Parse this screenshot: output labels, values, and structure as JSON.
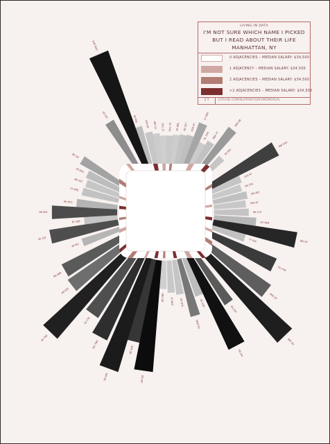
{
  "legend": {
    "kicker": "LIVING IN DATA",
    "title_lines": [
      "I'M NOT SURE WHICH NAME I PICKED",
      "BUT I READ ABOUT THEIR LIFE",
      "MANHATTAN, NY"
    ],
    "entries": [
      {
        "label": "0 ADJACENCIES – MEDIAN SALARY: $34,500",
        "color": "#ffffff"
      },
      {
        "label": "1 ADJACENCY – MEDIAN SALARY: $34,500",
        "color": "#cfa8a3"
      },
      {
        "label": "2 ADJACENCIES – MEDIAN SALARY: $34,500",
        "color": "#b27d74"
      },
      {
        "label": ">2 ADJACENCIES – MEDIAN SALARY: $34,500",
        "color": "#7c2e2f"
      }
    ],
    "footer_left": "2 T",
    "footer_right": "GITHUB.COM/BLPRINT/UIEVMEMORIAL"
  },
  "colors": {
    "background": "#f7f1ef",
    "frame_border": "#b86a6a",
    "dark": "#2b2b2b"
  },
  "chart_data": {
    "type": "radial-bar",
    "title": "I'M NOT SURE WHICH NAME I PICKED BUT I READ ABOUT THEIR LIFE",
    "subtitle": "MANHATTAN, NY",
    "grid": false,
    "legend_position": "top-right",
    "value_range": [
      0,
      1
    ],
    "bars": [
      {
        "angle": 247,
        "value": 0.96,
        "shade": "#161616",
        "label": "5HE 0DO"
      },
      {
        "angle": 238,
        "value": 0.45,
        "shade": "#8d8d8d",
        "label": "19 35T"
      },
      {
        "angle": 252,
        "value": 0.32,
        "shade": "#bdbdbd",
        "label": "80 96L"
      },
      {
        "angle": 258,
        "value": 0.26,
        "shade": "#c6c6c6",
        "label": "1R4 5B"
      },
      {
        "angle": 263,
        "value": 0.24,
        "shade": "#cccccc",
        "label": "6BY 0T"
      },
      {
        "angle": 268,
        "value": 0.22,
        "shade": "#cfcfcf",
        "label": "7O1 1T"
      },
      {
        "angle": 273,
        "value": 0.22,
        "shade": "#c9c9c9",
        "label": "5O3 7D"
      },
      {
        "angle": 278,
        "value": 0.23,
        "shade": "#cdcdcd",
        "label": "9Y 8OL"
      },
      {
        "angle": 283,
        "value": 0.24,
        "shade": "#c3c3c3",
        "label": "9O 1ET"
      },
      {
        "angle": 288,
        "value": 0.25,
        "shade": "#bfbfbf",
        "label": "3DR 9T"
      },
      {
        "angle": 293,
        "value": 0.37,
        "shade": "#a6a6a6",
        "label": "27 9KE"
      },
      {
        "angle": 298,
        "value": 0.23,
        "shade": "#cbcbcb",
        "label": "9L 1OH"
      },
      {
        "angle": 303,
        "value": 0.27,
        "shade": "#c2c2c2",
        "label": "9BA 7T"
      },
      {
        "angle": 309,
        "value": 0.45,
        "shade": "#9a9a9a",
        "label": "4EN 2B"
      },
      {
        "angle": 316,
        "value": 0.23,
        "shade": "#c6c6c6",
        "label": "7N 5FE"
      },
      {
        "angle": 330,
        "value": 0.61,
        "shade": "#3f3f3f",
        "label": "BW 54O"
      },
      {
        "angle": 336,
        "value": 0.26,
        "shade": "#c5c5c5",
        "label": "1H5 9T"
      },
      {
        "angle": 342,
        "value": 0.24,
        "shade": "#c9c9c9",
        "label": "0R 2TA"
      },
      {
        "angle": 348,
        "value": 0.27,
        "shade": "#c0c0c0",
        "label": "5M 2RT"
      },
      {
        "angle": 354,
        "value": 0.25,
        "shade": "#c8c8c8",
        "label": "3HE 8T"
      },
      {
        "angle": 0,
        "value": 0.27,
        "shade": "#c4c4c4",
        "label": "9N 1OT"
      },
      {
        "angle": 6,
        "value": 0.33,
        "shade": "#b7b7b7",
        "label": "3H 44M"
      },
      {
        "angle": 12,
        "value": 0.66,
        "shade": "#262626",
        "label": "8GI 9T"
      },
      {
        "angle": 18,
        "value": 0.27,
        "shade": "#c1c1c1",
        "label": "77 0LE"
      },
      {
        "angle": 26,
        "value": 0.56,
        "shade": "#3b3b3b",
        "label": "7O 2TM"
      },
      {
        "angle": 38,
        "value": 0.62,
        "shade": "#5e5e5e",
        "label": "4RE 2D"
      },
      {
        "angle": 46,
        "value": 0.96,
        "shade": "#1e1e1e",
        "label": "5RT 4H"
      },
      {
        "angle": 55,
        "value": 0.48,
        "shade": "#5a5a5a",
        "label": "6S 0TP"
      },
      {
        "angle": 62,
        "value": 0.8,
        "shade": "#111111",
        "label": "7N 2AI"
      },
      {
        "angle": 68,
        "value": 0.32,
        "shade": "#bcbcbc",
        "label": "6S 1UE"
      },
      {
        "angle": 74,
        "value": 0.46,
        "shade": "#777777",
        "label": "3EW 0D"
      },
      {
        "angle": 80,
        "value": 0.27,
        "shade": "#c5c5c5",
        "label": "5D 9TR"
      },
      {
        "angle": 86,
        "value": 0.25,
        "shade": "#c8c8c8",
        "label": "1H 8OT"
      },
      {
        "angle": 92,
        "value": 0.22,
        "shade": "#cfcfcf",
        "label": "8D 2NE"
      },
      {
        "angle": 98,
        "value": 0.87,
        "shade": "#0c0c0c",
        "label": "2W 5IE"
      },
      {
        "angle": 104,
        "value": 0.66,
        "shade": "#363636",
        "label": "6E 3UR"
      },
      {
        "angle": 110,
        "value": 0.92,
        "shade": "#1b1b1b",
        "label": "8A 0RT"
      },
      {
        "angle": 118,
        "value": 0.72,
        "shade": "#2e2e2e",
        "label": "8O 7NH"
      },
      {
        "angle": 126,
        "value": 0.6,
        "shade": "#4f4f4f",
        "label": "2E 1TK"
      },
      {
        "angle": 134,
        "value": 0.92,
        "shade": "#202020",
        "label": "1N 7AE"
      },
      {
        "angle": 142,
        "value": 0.55,
        "shade": "#6e6e6e",
        "label": "4N 5GE"
      },
      {
        "angle": 150,
        "value": 0.53,
        "shade": "#5a5a5a",
        "label": "9N 4BR"
      },
      {
        "angle": 160,
        "value": 0.31,
        "shade": "#b5b5b5",
        "label": "2R 8IV"
      },
      {
        "angle": 168,
        "value": 0.54,
        "shade": "#4e4e4e",
        "label": "4S 1OT"
      },
      {
        "angle": 174,
        "value": 0.26,
        "shade": "#c5c5c5",
        "label": "8Y 2EB"
      },
      {
        "angle": 180,
        "value": 0.51,
        "shade": "#4c4c4c",
        "label": "6R 9ES"
      },
      {
        "angle": 186,
        "value": 0.32,
        "shade": "#b4b4b4",
        "label": "9H 9TO"
      },
      {
        "angle": 194,
        "value": 0.29,
        "shade": "#c2c2c2",
        "label": "3T 8HE"
      },
      {
        "angle": 200,
        "value": 0.28,
        "shade": "#c6c6c6",
        "label": "6N 2ST"
      },
      {
        "angle": 206,
        "value": 0.3,
        "shade": "#bdbdbd",
        "label": "1R 6AU"
      },
      {
        "angle": 212,
        "value": 0.39,
        "shade": "#a3a3a3",
        "label": "8E 1IS"
      }
    ],
    "inner_segments": [
      {
        "angle": 258,
        "span": 5,
        "category": ">2"
      },
      {
        "angle": 268,
        "span": 4,
        "category": "1"
      },
      {
        "angle": 276,
        "span": 3,
        "category": "2"
      },
      {
        "angle": 298,
        "span": 5,
        "category": "1"
      },
      {
        "angle": 312,
        "span": 4,
        "category": ">2"
      },
      {
        "angle": 330,
        "span": 3,
        "category": "2"
      },
      {
        "angle": 352,
        "span": 3,
        "category": "1"
      },
      {
        "angle": 8,
        "span": 4,
        "category": ">2"
      },
      {
        "angle": 22,
        "span": 3,
        "category": "1"
      },
      {
        "angle": 34,
        "span": 4,
        "category": "2"
      },
      {
        "angle": 50,
        "span": 3,
        "category": ">2"
      },
      {
        "angle": 62,
        "span": 5,
        "category": "1"
      },
      {
        "angle": 78,
        "span": 4,
        "category": ">2"
      },
      {
        "angle": 92,
        "span": 3,
        "category": "2"
      },
      {
        "angle": 102,
        "span": 4,
        "category": ">2"
      },
      {
        "angle": 114,
        "span": 3,
        "category": "1"
      },
      {
        "angle": 128,
        "span": 4,
        "category": "2"
      },
      {
        "angle": 140,
        "span": 3,
        "category": ">2"
      },
      {
        "angle": 158,
        "span": 4,
        "category": "1"
      },
      {
        "angle": 172,
        "span": 3,
        "category": "2"
      },
      {
        "angle": 186,
        "span": 4,
        "category": ">2"
      },
      {
        "angle": 198,
        "span": 3,
        "category": "1"
      },
      {
        "angle": 214,
        "span": 4,
        "category": "2"
      },
      {
        "angle": 232,
        "span": 3,
        "category": "1"
      }
    ]
  }
}
